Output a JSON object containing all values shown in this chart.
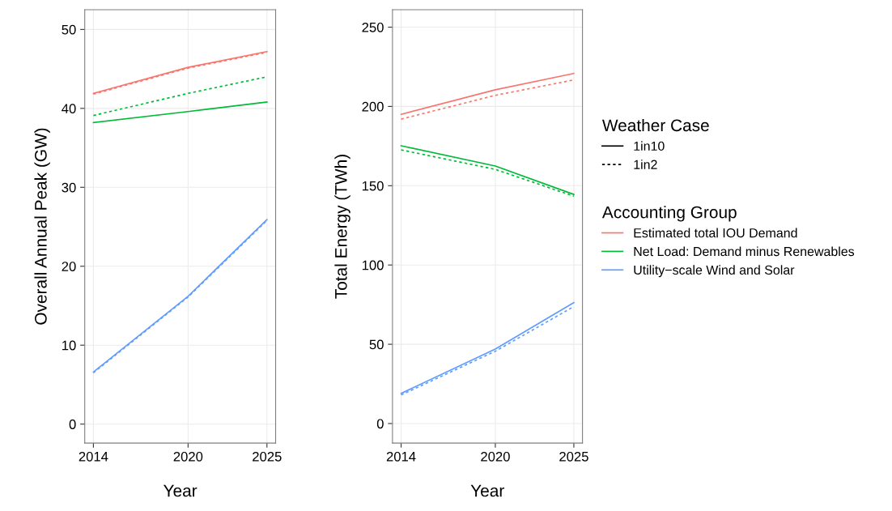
{
  "chart_data": [
    {
      "type": "line",
      "xlabel": "Year",
      "ylabel": "Overall Annual Peak (GW)",
      "x": [
        2014,
        2020,
        2025
      ],
      "xlim": [
        2013.45,
        2025.55
      ],
      "xticks": [
        2014,
        2020,
        2025
      ],
      "ylim": [
        -2.4,
        52.5
      ],
      "yticks": [
        0,
        10,
        20,
        30,
        40,
        50
      ],
      "grid": true,
      "series": [
        {
          "color": "#f8766d",
          "line_style": "solid",
          "values": [
            41.9,
            45.2,
            47.2
          ]
        },
        {
          "color": "#f8766d",
          "line_style": "dotted",
          "values": [
            41.8,
            45.1,
            47.1
          ]
        },
        {
          "color": "#00ba38",
          "line_style": "solid",
          "values": [
            38.2,
            39.6,
            40.8
          ]
        },
        {
          "color": "#00ba38",
          "line_style": "dotted",
          "values": [
            39.1,
            41.9,
            44.0
          ]
        },
        {
          "color": "#619cff",
          "line_style": "solid",
          "values": [
            6.6,
            16.2,
            25.9
          ]
        },
        {
          "color": "#619cff",
          "line_style": "dotted",
          "values": [
            6.5,
            16.1,
            25.8
          ]
        }
      ]
    },
    {
      "type": "line",
      "xlabel": "Year",
      "ylabel": "Total Energy (TWh)",
      "x": [
        2014,
        2020,
        2025
      ],
      "xlim": [
        2013.45,
        2025.55
      ],
      "xticks": [
        2014,
        2020,
        2025
      ],
      "ylim": [
        -12.3,
        261
      ],
      "yticks": [
        0,
        50,
        100,
        150,
        200,
        250
      ],
      "grid": true,
      "legend": "right",
      "legend_title": "Accounting Group",
      "annotations": [
        "Weather Case",
        "1in10",
        "1in2"
      ],
      "series": [
        {
          "name": "Estimated total IOU Demand",
          "color": "#f8766d",
          "line_style": "solid",
          "values": [
            195,
            210.5,
            220.8
          ]
        },
        {
          "color": "#f8766d",
          "line_style": "dotted",
          "values": [
            192,
            207,
            216.7
          ]
        },
        {
          "name": "Net Load: Demand minus Renewables",
          "color": "#00ba38",
          "line_style": "solid",
          "values": [
            175.2,
            162.4,
            144.5
          ]
        },
        {
          "color": "#00ba38",
          "line_style": "dotted",
          "values": [
            172.6,
            160.3,
            143.4
          ]
        },
        {
          "name": "Utility−scale Wind and Solar",
          "color": "#619cff",
          "line_style": "solid",
          "values": [
            19,
            47,
            76.3
          ]
        },
        {
          "color": "#619cff",
          "line_style": "dotted",
          "values": [
            18,
            45.6,
            73.8
          ]
        }
      ]
    }
  ]
}
